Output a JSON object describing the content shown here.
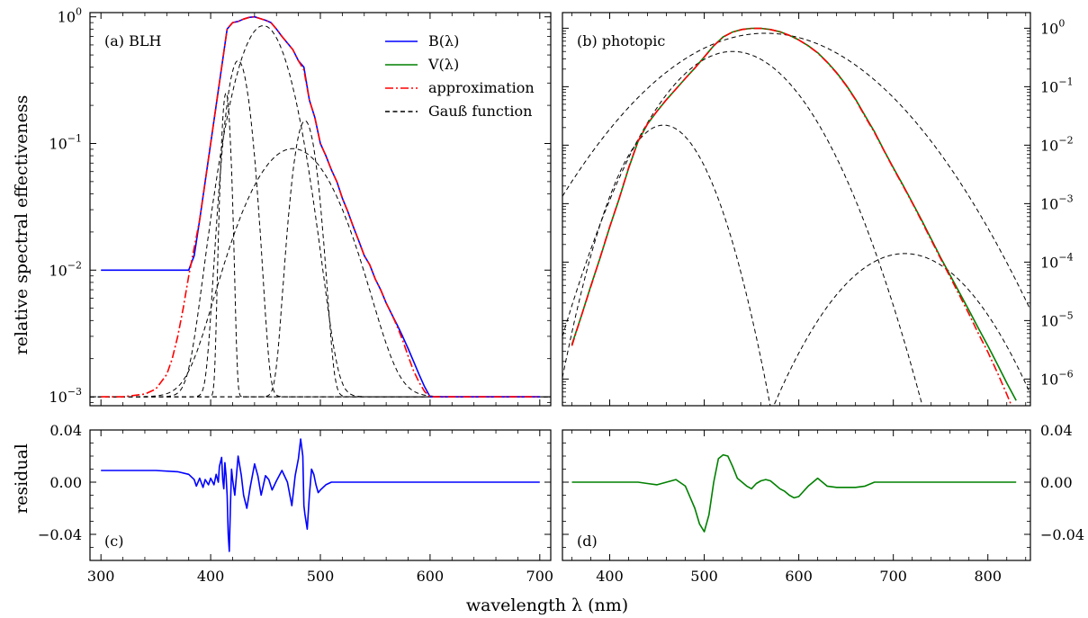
{
  "figure": {
    "xlabel": "wavelength λ (nm)",
    "ylabel_top": "relative spectral effectiveness",
    "ylabel_bottom": "residual"
  },
  "chart_data": [
    {
      "id": "a",
      "type": "line",
      "panel_label": "(a) BLH",
      "yscale": "log",
      "ylim": [
        0.00085,
        1.08
      ],
      "xlim": [
        290,
        710
      ],
      "xticks": [
        300,
        400,
        500,
        600,
        700
      ],
      "yticks": [
        {
          "value": 0.001,
          "base": "10",
          "exp": "−3"
        },
        {
          "value": 0.01,
          "base": "10",
          "exp": "−2"
        },
        {
          "value": 0.1,
          "base": "10",
          "exp": "−1"
        },
        {
          "value": 1,
          "base": "10",
          "exp": "0"
        }
      ],
      "legend_position": "top-right",
      "legend": [
        {
          "label": "B(λ)",
          "color": "#0000ff",
          "dash": "solid"
        },
        {
          "label": "V(λ)",
          "color": "#008000",
          "dash": "solid"
        },
        {
          "label": "approximation",
          "color": "#ff0000",
          "dash": "dashdot"
        },
        {
          "label": "Gauß function",
          "color": "#000000",
          "dash": "dashed"
        }
      ],
      "series": [
        {
          "label": "B(λ)",
          "color": "#0000ff",
          "dash": "solid",
          "x": [
            300,
            380,
            385,
            390,
            395,
            400,
            405,
            410,
            415,
            420,
            425,
            430,
            435,
            440,
            445,
            450,
            455,
            460,
            465,
            470,
            475,
            480,
            485,
            490,
            495,
            500,
            505,
            510,
            515,
            520,
            525,
            530,
            535,
            540,
            545,
            550,
            555,
            560,
            565,
            570,
            575,
            580,
            585,
            590,
            595,
            600,
            700
          ],
          "y": [
            0.01,
            0.01,
            0.013,
            0.025,
            0.05,
            0.1,
            0.2,
            0.4,
            0.8,
            0.9,
            0.92,
            0.96,
            0.99,
            1.0,
            0.97,
            0.94,
            0.9,
            0.8,
            0.7,
            0.62,
            0.55,
            0.45,
            0.4,
            0.22,
            0.16,
            0.1,
            0.08,
            0.062,
            0.05,
            0.037,
            0.029,
            0.022,
            0.017,
            0.013,
            0.011,
            0.0085,
            0.007,
            0.0055,
            0.0045,
            0.0037,
            0.003,
            0.0024,
            0.0019,
            0.0015,
            0.0012,
            0.001,
            0.001
          ]
        },
        {
          "label": "approximation",
          "color": "#ff0000",
          "dash": "dashdot",
          "x": [
            300,
            320,
            340,
            350,
            360,
            365,
            370,
            375,
            380,
            385,
            390,
            395,
            400,
            405,
            410,
            415,
            420,
            425,
            430,
            435,
            440,
            445,
            450,
            455,
            460,
            465,
            470,
            475,
            480,
            485,
            490,
            495,
            500,
            505,
            510,
            515,
            520,
            525,
            530,
            535,
            540,
            545,
            550,
            555,
            560,
            565,
            570,
            575,
            580,
            585,
            590,
            595,
            600,
            610,
            700
          ],
          "y": [
            0.001,
            0.001,
            0.00105,
            0.00115,
            0.0015,
            0.002,
            0.003,
            0.005,
            0.009,
            0.015,
            0.025,
            0.05,
            0.1,
            0.2,
            0.4,
            0.8,
            0.9,
            0.92,
            0.96,
            0.99,
            1.0,
            0.97,
            0.94,
            0.9,
            0.8,
            0.7,
            0.62,
            0.55,
            0.45,
            0.38,
            0.22,
            0.16,
            0.1,
            0.08,
            0.062,
            0.05,
            0.037,
            0.029,
            0.022,
            0.017,
            0.013,
            0.011,
            0.0085,
            0.007,
            0.0055,
            0.0045,
            0.0036,
            0.0028,
            0.0021,
            0.0016,
            0.0013,
            0.0011,
            0.001,
            0.001,
            0.001
          ]
        }
      ],
      "gaussians": {
        "baseline": 0.001,
        "components": [
          {
            "center": 414,
            "peak": 0.25,
            "sigma": 3
          },
          {
            "center": 425,
            "peak": 0.45,
            "sigma": 8
          },
          {
            "center": 448,
            "peak": 0.85,
            "sigma": 18
          },
          {
            "center": 475,
            "peak": 0.09,
            "sigma": 30
          },
          {
            "center": 486,
            "peak": 0.15,
            "sigma": 8
          }
        ]
      }
    },
    {
      "id": "b",
      "type": "line",
      "panel_label": "(b) photopic",
      "yscale": "log",
      "ylim": [
        3.5e-07,
        1.85
      ],
      "xlim": [
        350,
        845
      ],
      "xticks": [
        400,
        500,
        600,
        700,
        800
      ],
      "yticks": [
        {
          "value": 1e-06,
          "base": "10",
          "exp": "−6"
        },
        {
          "value": 1e-05,
          "base": "10",
          "exp": "−5"
        },
        {
          "value": 0.0001,
          "base": "10",
          "exp": "−4"
        },
        {
          "value": 0.001,
          "base": "10",
          "exp": "−3"
        },
        {
          "value": 0.01,
          "base": "10",
          "exp": "−2"
        },
        {
          "value": 0.1,
          "base": "10",
          "exp": "−1"
        },
        {
          "value": 1,
          "base": "10",
          "exp": "0"
        }
      ],
      "series": [
        {
          "label": "V(λ)",
          "color": "#008000",
          "dash": "solid",
          "x": [
            360,
            370,
            380,
            390,
            400,
            410,
            420,
            430,
            440,
            450,
            460,
            470,
            480,
            490,
            500,
            510,
            520,
            530,
            540,
            550,
            560,
            570,
            580,
            590,
            600,
            610,
            620,
            630,
            640,
            650,
            660,
            670,
            680,
            690,
            700,
            710,
            720,
            730,
            740,
            750,
            760,
            770,
            780,
            790,
            800,
            810,
            820,
            830
          ],
          "y": [
            3.9e-06,
            1.2e-05,
            3.9e-05,
            0.00012,
            0.000396,
            0.00121,
            0.004,
            0.0116,
            0.023,
            0.038,
            0.06,
            0.091,
            0.139,
            0.208,
            0.323,
            0.503,
            0.71,
            0.862,
            0.954,
            0.995,
            0.995,
            0.952,
            0.87,
            0.757,
            0.631,
            0.503,
            0.381,
            0.265,
            0.175,
            0.107,
            0.061,
            0.032,
            0.017,
            0.0082,
            0.0041,
            0.0021,
            0.00105,
            0.00052,
            0.00025,
            0.00012,
            6e-05,
            3e-05,
            1.5e-05,
            7.4e-06,
            3.7e-06,
            1.8e-06,
            8.6e-07,
            4.3e-07
          ]
        },
        {
          "label": "approximation",
          "color": "#ff0000",
          "dash": "dashdot",
          "x": [
            360,
            370,
            380,
            390,
            400,
            410,
            420,
            430,
            440,
            450,
            460,
            470,
            480,
            490,
            500,
            510,
            520,
            530,
            540,
            550,
            560,
            570,
            580,
            590,
            600,
            610,
            620,
            630,
            640,
            650,
            660,
            670,
            680,
            690,
            700,
            710,
            720,
            730,
            740,
            750,
            760,
            770,
            780,
            790,
            800,
            810,
            820,
            825
          ],
          "y": [
            3.7e-06,
            1.2e-05,
            3.8e-05,
            0.000122,
            0.0004,
            0.00122,
            0.0041,
            0.0117,
            0.0232,
            0.0382,
            0.0602,
            0.0912,
            0.139,
            0.208,
            0.321,
            0.5,
            0.708,
            0.86,
            0.952,
            0.993,
            0.993,
            0.95,
            0.868,
            0.755,
            0.63,
            0.5,
            0.378,
            0.262,
            0.172,
            0.105,
            0.06,
            0.031,
            0.0165,
            0.0081,
            0.004,
            0.00205,
            0.00103,
            0.0005,
            0.00024,
            0.000115,
            5.6e-05,
            2.7e-05,
            1.3e-05,
            6e-06,
            2.9e-06,
            1.3e-06,
            5.5e-07,
            3.5e-07
          ]
        }
      ],
      "gaussians": {
        "baseline": 0,
        "components": [
          {
            "center": 457,
            "peak": 0.022,
            "sigma": 24
          },
          {
            "center": 530,
            "peak": 0.4,
            "sigma": 38
          },
          {
            "center": 565,
            "peak": 0.82,
            "sigma": 60
          },
          {
            "center": 712,
            "peak": 0.00014,
            "sigma": 40
          }
        ]
      }
    },
    {
      "id": "c",
      "type": "line",
      "panel_label": "(c)",
      "yscale": "linear",
      "ylim": [
        -0.06,
        0.04
      ],
      "xlim": [
        290,
        710
      ],
      "xticks": [
        300,
        400,
        500,
        600,
        700
      ],
      "yticks": [
        {
          "value": 0.04,
          "label": "0.04"
        },
        {
          "value": 0,
          "label": "0.00"
        },
        {
          "value": -0.04,
          "label": "−0.04"
        }
      ],
      "series": [
        {
          "label": "residual B",
          "color": "#0000ff",
          "dash": "solid",
          "x": [
            300,
            350,
            370,
            380,
            385,
            387,
            390,
            393,
            395,
            398,
            400,
            403,
            405,
            407,
            408,
            410,
            411,
            412,
            413,
            414,
            415,
            416,
            417,
            418,
            419,
            420,
            422,
            425,
            428,
            430,
            433,
            436,
            440,
            443,
            446,
            450,
            453,
            456,
            460,
            465,
            470,
            474,
            477,
            480,
            482,
            484,
            485,
            486,
            488,
            490,
            492,
            494,
            496,
            498,
            500,
            505,
            510,
            520,
            530,
            550,
            600,
            700
          ],
          "y": [
            0.009,
            0.009,
            0.008,
            0.006,
            0.002,
            -0.003,
            0.003,
            -0.004,
            0.002,
            -0.002,
            0.003,
            -0.002,
            0.006,
            0.0,
            0.012,
            0.019,
            0.002,
            -0.005,
            0.015,
            0.005,
            -0.01,
            -0.04,
            -0.053,
            -0.02,
            0.01,
            0.002,
            -0.01,
            0.02,
            0.005,
            -0.01,
            -0.02,
            -0.004,
            0.014,
            0.005,
            -0.01,
            0.005,
            0.002,
            -0.006,
            0.001,
            0.009,
            0.0,
            -0.018,
            0.005,
            0.018,
            0.033,
            0.02,
            -0.018,
            -0.025,
            -0.036,
            -0.01,
            0.01,
            0.006,
            -0.002,
            -0.008,
            -0.006,
            -0.002,
            0.0,
            0.0,
            0.0,
            0.0,
            0.0,
            0.0
          ]
        }
      ]
    },
    {
      "id": "d",
      "type": "line",
      "panel_label": "(d)",
      "yscale": "linear",
      "ylim": [
        -0.06,
        0.04
      ],
      "xlim": [
        350,
        845
      ],
      "xticks": [
        400,
        500,
        600,
        700,
        800
      ],
      "yticks": [
        {
          "value": 0.04,
          "label": "0.04"
        },
        {
          "value": 0,
          "label": "0.00"
        },
        {
          "value": -0.04,
          "label": "−0.04"
        }
      ],
      "series": [
        {
          "label": "residual V",
          "color": "#008000",
          "dash": "solid",
          "x": [
            360,
            400,
            430,
            440,
            450,
            460,
            470,
            480,
            490,
            495,
            500,
            505,
            510,
            515,
            520,
            525,
            530,
            535,
            540,
            545,
            550,
            555,
            560,
            565,
            570,
            575,
            580,
            585,
            590,
            595,
            600,
            605,
            610,
            615,
            620,
            625,
            630,
            640,
            650,
            660,
            670,
            680,
            700,
            750,
            800,
            830
          ],
          "y": [
            0.0,
            0.0,
            0.0,
            -0.001,
            -0.002,
            0.0,
            0.002,
            -0.003,
            -0.02,
            -0.032,
            -0.038,
            -0.025,
            0.0,
            0.018,
            0.021,
            0.02,
            0.012,
            0.003,
            0.0,
            -0.003,
            -0.005,
            -0.001,
            0.001,
            0.002,
            0.001,
            -0.002,
            -0.005,
            -0.007,
            -0.01,
            -0.012,
            -0.011,
            -0.007,
            -0.003,
            0.0,
            0.003,
            0.0,
            -0.003,
            -0.004,
            -0.004,
            -0.004,
            -0.003,
            0.0,
            0.0,
            0.0,
            0.0,
            0.0
          ]
        }
      ]
    }
  ]
}
